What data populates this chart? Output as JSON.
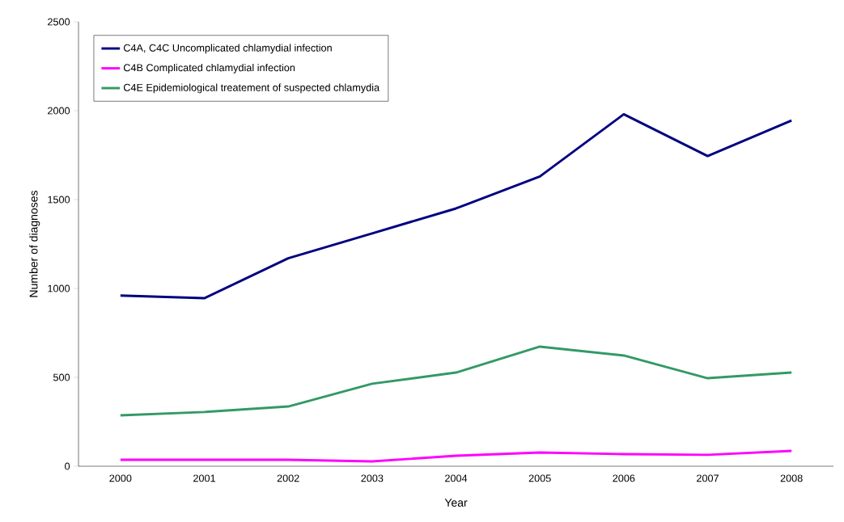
{
  "chart_data": {
    "type": "line",
    "xlabel": "Year",
    "ylabel": "Number of diagnoses",
    "categories": [
      "2000",
      "2001",
      "2002",
      "2003",
      "2004",
      "2005",
      "2006",
      "2007",
      "2008"
    ],
    "series": [
      {
        "name": "C4A, C4C Uncomplicated chlamydial infection",
        "color": "#000080",
        "values": [
          960,
          945,
          1170,
          1310,
          1450,
          1630,
          1980,
          1745,
          1945
        ]
      },
      {
        "name": "C4B Complicated chlamydial infection",
        "color": "#ff00ff",
        "values": [
          36,
          36,
          36,
          27,
          59,
          77,
          68,
          64,
          86
        ]
      },
      {
        "name": "C4E Epidemiological treatement of suspected chlamydia",
        "color": "#339966",
        "values": [
          286,
          305,
          336,
          464,
          527,
          673,
          623,
          495,
          527
        ]
      }
    ],
    "ylim": [
      0,
      2500
    ],
    "yticks": [
      0,
      500,
      1000,
      1500,
      2000,
      2500
    ],
    "legend": "top left"
  }
}
